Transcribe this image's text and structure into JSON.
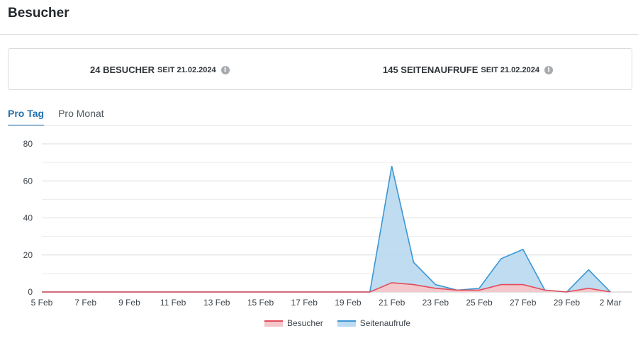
{
  "page": {
    "title": "Besucher"
  },
  "stats": {
    "visitors": {
      "value": "24 BESUCHER",
      "since": "SEIT 21.02.2024",
      "info_icon": "info-icon"
    },
    "pageviews": {
      "value": "145 SEITENAUFRUFE",
      "since": "SEIT 21.02.2024",
      "info_icon": "info-icon"
    }
  },
  "tabs": [
    {
      "label": "Pro Tag",
      "active": true
    },
    {
      "label": "Pro Monat",
      "active": false
    }
  ],
  "chart_data": {
    "type": "area",
    "x": [
      "5 Feb",
      "6 Feb",
      "7 Feb",
      "8 Feb",
      "9 Feb",
      "10 Feb",
      "11 Feb",
      "12 Feb",
      "13 Feb",
      "14 Feb",
      "15 Feb",
      "16 Feb",
      "17 Feb",
      "18 Feb",
      "19 Feb",
      "20 Feb",
      "21 Feb",
      "22 Feb",
      "23 Feb",
      "24 Feb",
      "25 Feb",
      "26 Feb",
      "27 Feb",
      "28 Feb",
      "29 Feb",
      "1 Mar",
      "2 Mar"
    ],
    "x_tick_labels": [
      "5 Feb",
      "7 Feb",
      "9 Feb",
      "11 Feb",
      "13 Feb",
      "15 Feb",
      "17 Feb",
      "19 Feb",
      "21 Feb",
      "23 Feb",
      "25 Feb",
      "27 Feb",
      "29 Feb",
      "2 Mar"
    ],
    "y_ticks": [
      0,
      20,
      40,
      60,
      80
    ],
    "ylim": [
      0,
      80
    ],
    "grid": true,
    "legend_position": "bottom-center",
    "series": [
      {
        "name": "Besucher",
        "color": "#e14d5a",
        "fill": "#f4c6ca",
        "values": [
          0,
          0,
          0,
          0,
          0,
          0,
          0,
          0,
          0,
          0,
          0,
          0,
          0,
          0,
          0,
          0,
          5,
          4,
          2,
          1,
          1,
          4,
          4,
          1,
          0,
          2,
          0
        ]
      },
      {
        "name": "Seitenaufrufe",
        "color": "#3a97d4",
        "fill": "#bcdaf0",
        "values": [
          0,
          0,
          0,
          0,
          0,
          0,
          0,
          0,
          0,
          0,
          0,
          0,
          0,
          0,
          0,
          0,
          68,
          16,
          4,
          1,
          2,
          18,
          23,
          1,
          0,
          12,
          0
        ]
      }
    ]
  }
}
